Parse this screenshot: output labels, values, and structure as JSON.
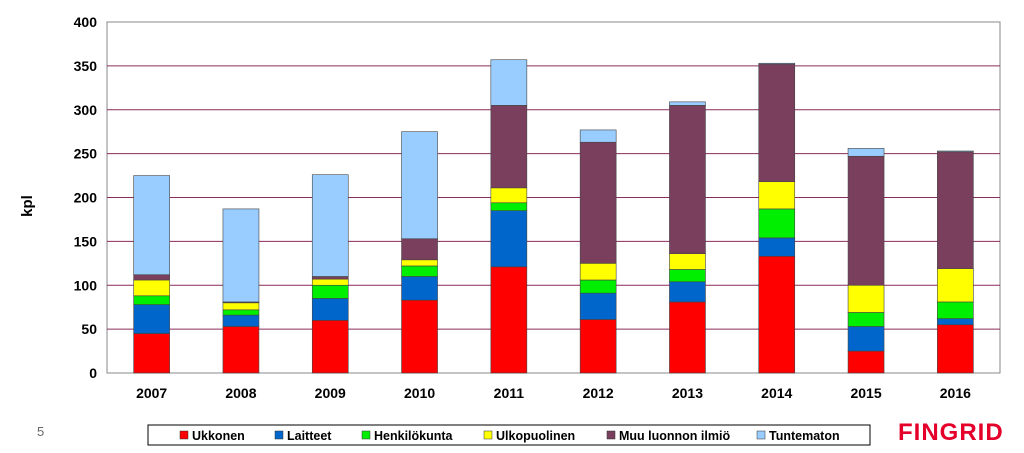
{
  "page_number": "5",
  "logo_text": "FINGRID",
  "chart_data": {
    "type": "bar",
    "stacked": true,
    "title": "",
    "xlabel": "",
    "ylabel": "kpl",
    "ylim": [
      0,
      400
    ],
    "yticks": [
      0,
      50,
      100,
      150,
      200,
      250,
      300,
      350,
      400
    ],
    "grid": true,
    "legend_position": "bottom",
    "categories": [
      "2007",
      "2008",
      "2009",
      "2010",
      "2011",
      "2012",
      "2013",
      "2014",
      "2015",
      "2016"
    ],
    "series": [
      {
        "name": "Ukkonen",
        "color": "#ff0000",
        "values": [
          45,
          53,
          60,
          83,
          121,
          61,
          81,
          133,
          25,
          55
        ]
      },
      {
        "name": "Laitteet",
        "color": "#0066cc",
        "values": [
          33,
          13,
          25,
          27,
          64,
          30,
          23,
          21,
          28,
          7
        ]
      },
      {
        "name": "Henkilökunta",
        "color": "#00ee00",
        "values": [
          10,
          6,
          15,
          12,
          9,
          15,
          14,
          33,
          16,
          19
        ]
      },
      {
        "name": "Ulkopuolinen",
        "color": "#ffff00",
        "values": [
          18,
          8,
          7,
          7,
          17,
          19,
          18,
          31,
          31,
          38
        ]
      },
      {
        "name": "Muu luonnon ilmiö",
        "color": "#7b3f5e",
        "values": [
          6,
          1,
          3,
          24,
          94,
          138,
          169,
          134,
          147,
          133
        ]
      },
      {
        "name": "Tuntematon",
        "color": "#99ccff",
        "values": [
          113,
          106,
          116,
          122,
          52,
          14,
          4,
          1,
          9,
          1
        ]
      }
    ]
  }
}
